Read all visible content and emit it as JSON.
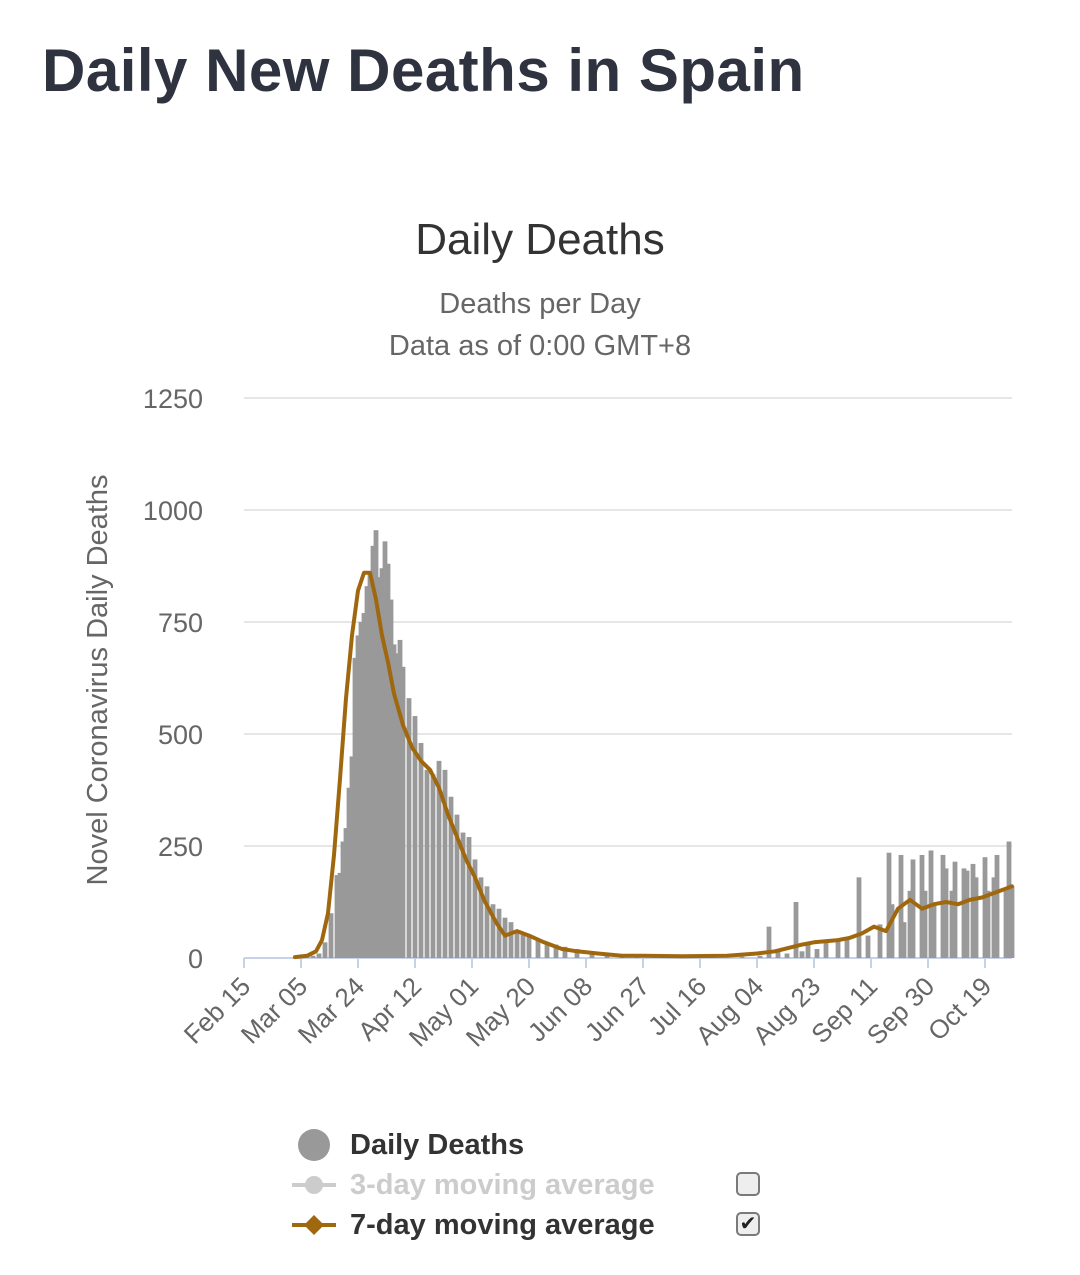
{
  "page": {
    "title": "Daily New Deaths in Spain"
  },
  "chart_data": {
    "type": "bar",
    "title": "Daily Deaths",
    "subtitle": "Deaths per Day",
    "subtitle2": "Data as of 0:00 GMT+8",
    "ylabel": "Novel Coronavirus Daily Deaths",
    "ylim": [
      0,
      1250
    ],
    "yticks": [
      0,
      250,
      500,
      750,
      1000,
      1250
    ],
    "x_start": "Feb 15",
    "x_end": "Oct 28",
    "x_tick_labels": [
      "Feb 15",
      "Mar 05",
      "Mar 24",
      "Apr 12",
      "May 01",
      "May 20",
      "Jun 08",
      "Jun 27",
      "Jul 16",
      "Aug 04",
      "Aug 23",
      "Sep 11",
      "Sep 30",
      "Oct 19"
    ],
    "grid": true,
    "series": [
      {
        "name": "Daily Deaths",
        "kind": "bar",
        "color": "#999999",
        "x": [
          "Mar 03",
          "Mar 07",
          "Mar 09",
          "Mar 11",
          "Mar 13",
          "Mar 15",
          "Mar 17",
          "Mar 18",
          "Mar 19",
          "Mar 20",
          "Mar 21",
          "Mar 22",
          "Mar 23",
          "Mar 24",
          "Mar 25",
          "Mar 26",
          "Mar 27",
          "Mar 28",
          "Mar 29",
          "Mar 30",
          "Mar 31",
          "Apr 01",
          "Apr 02",
          "Apr 03",
          "Apr 04",
          "Apr 05",
          "Apr 06",
          "Apr 07",
          "Apr 08",
          "Apr 10",
          "Apr 12",
          "Apr 14",
          "Apr 16",
          "Apr 18",
          "Apr 20",
          "Apr 22",
          "Apr 24",
          "Apr 26",
          "Apr 28",
          "Apr 30",
          "May 02",
          "May 04",
          "May 06",
          "May 08",
          "May 10",
          "May 12",
          "May 14",
          "May 16",
          "May 18",
          "May 20",
          "May 23",
          "May 26",
          "May 29",
          "Jun 01",
          "Jun 05",
          "Jun 10",
          "Jun 15",
          "Jun 20",
          "Jun 25",
          "Jul 01",
          "Jul 10",
          "Jul 20",
          "Jul 30",
          "Aug 05",
          "Aug 08",
          "Aug 11",
          "Aug 14",
          "Aug 17",
          "Aug 19",
          "Aug 21",
          "Aug 24",
          "Aug 27",
          "Aug 31",
          "Sep 03",
          "Sep 07",
          "Sep 10",
          "Sep 14",
          "Sep 17",
          "Sep 18",
          "Sep 21",
          "Sep 22",
          "Sep 24",
          "Sep 25",
          "Sep 28",
          "Sep 29",
          "Oct 01",
          "Oct 02",
          "Oct 05",
          "Oct 06",
          "Oct 08",
          "Oct 09",
          "Oct 12",
          "Oct 13",
          "Oct 15",
          "Oct 16",
          "Oct 19",
          "Oct 20",
          "Oct 22",
          "Oct 23",
          "Oct 26",
          "Oct 27",
          "Oct 28"
        ],
        "values": [
          1,
          3,
          5,
          10,
          35,
          100,
          185,
          190,
          260,
          290,
          380,
          450,
          670,
          720,
          750,
          770,
          830,
          860,
          920,
          955,
          850,
          870,
          930,
          880,
          800,
          700,
          680,
          710,
          650,
          580,
          540,
          480,
          420,
          410,
          440,
          420,
          360,
          320,
          280,
          270,
          220,
          180,
          160,
          120,
          110,
          90,
          80,
          60,
          55,
          50,
          40,
          35,
          30,
          25,
          20,
          15,
          10,
          8,
          5,
          5,
          4,
          3,
          3,
          5,
          70,
          20,
          10,
          125,
          15,
          30,
          20,
          35,
          40,
          45,
          180,
          50,
          75,
          235,
          120,
          230,
          80,
          150,
          220,
          230,
          150,
          240,
          120,
          230,
          200,
          150,
          215,
          200,
          195,
          210,
          180,
          225,
          150,
          180,
          230,
          150,
          260,
          160
        ]
      },
      {
        "name": "3-day moving average",
        "kind": "line",
        "color": "#cccccc",
        "visible": false
      },
      {
        "name": "7-day moving average",
        "kind": "line",
        "color": "#a0680e",
        "x": [
          "Mar 03",
          "Mar 07",
          "Mar 10",
          "Mar 12",
          "Mar 14",
          "Mar 16",
          "Mar 18",
          "Mar 20",
          "Mar 22",
          "Mar 24",
          "Mar 26",
          "Mar 28",
          "Mar 30",
          "Apr 01",
          "Apr 03",
          "Apr 05",
          "Apr 08",
          "Apr 11",
          "Apr 14",
          "Apr 17",
          "Apr 20",
          "Apr 23",
          "Apr 26",
          "Apr 29",
          "May 02",
          "May 05",
          "May 09",
          "May 12",
          "May 16",
          "May 20",
          "May 25",
          "May 31",
          "Jun 05",
          "Jun 12",
          "Jun 20",
          "Jun 27",
          "Jul 10",
          "Jul 25",
          "Aug 04",
          "Aug 10",
          "Aug 16",
          "Aug 19",
          "Aug 23",
          "Aug 31",
          "Sep 04",
          "Sep 08",
          "Sep 12",
          "Sep 16",
          "Sep 20",
          "Sep 24",
          "Sep 28",
          "Oct 02",
          "Oct 06",
          "Oct 10",
          "Oct 14",
          "Oct 18",
          "Oct 22",
          "Oct 26",
          "Oct 28"
        ],
        "values": [
          2,
          5,
          15,
          40,
          100,
          230,
          400,
          580,
          720,
          820,
          860,
          860,
          800,
          720,
          660,
          590,
          520,
          470,
          440,
          420,
          380,
          320,
          270,
          220,
          180,
          130,
          80,
          50,
          60,
          50,
          35,
          20,
          15,
          10,
          5,
          5,
          4,
          5,
          10,
          15,
          25,
          30,
          35,
          40,
          45,
          55,
          70,
          60,
          110,
          130,
          110,
          120,
          125,
          120,
          130,
          135,
          145,
          155,
          160
        ]
      }
    ]
  },
  "legend": [
    {
      "label": "Daily Deaths",
      "active": true
    },
    {
      "label": "3-day moving average",
      "active": false,
      "checked": false
    },
    {
      "label": "7-day moving average",
      "active": true,
      "checked": true,
      "check_glyph": "✔"
    }
  ]
}
